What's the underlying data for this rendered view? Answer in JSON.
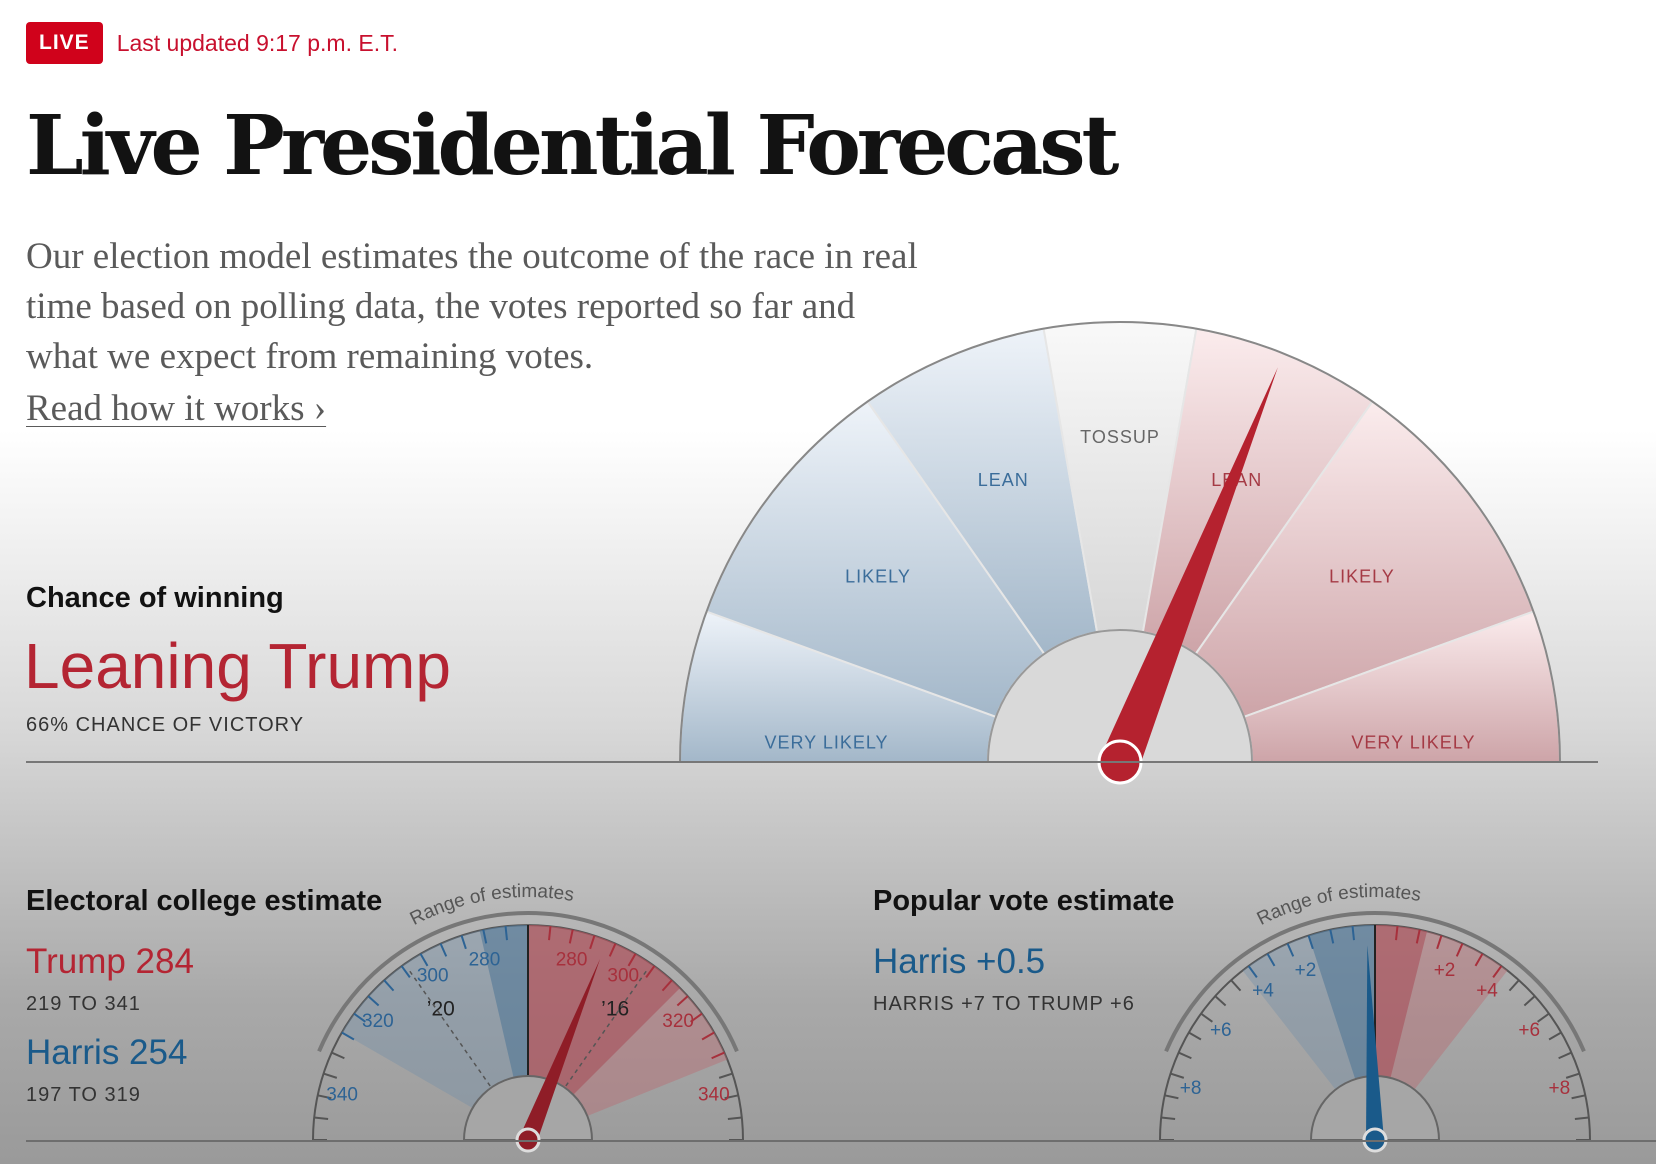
{
  "header": {
    "live_badge": "LIVE",
    "updated_text": "Last updated 9:17 p.m. E.T.",
    "title": "Live Presidential Forecast",
    "intro": "Our election model estimates the outcome of the race in real time based on polling data, the votes reported so far and what we expect from remaining votes.",
    "read_link": "Read how it works ›"
  },
  "chance": {
    "label": "Chance of winning",
    "value": "Leaning Trump",
    "sub": "66% CHANCE OF VICTORY",
    "trump_probability": 0.66,
    "segments": [
      {
        "label": "VERY LIKELY",
        "side": "harris"
      },
      {
        "label": "LIKELY",
        "side": "harris"
      },
      {
        "label": "LEAN",
        "side": "harris"
      },
      {
        "label": "TOSSUP",
        "side": "neutral"
      },
      {
        "label": "LEAN",
        "side": "trump"
      },
      {
        "label": "LIKELY",
        "side": "trump"
      },
      {
        "label": "VERY LIKELY",
        "side": "trump"
      }
    ]
  },
  "electoral": {
    "label": "Electoral college estimate",
    "trump": "Trump 284",
    "trump_range": "219 TO 341",
    "harris": "Harris 254",
    "harris_range": "197 TO 319",
    "trump_votes": 284,
    "gauge_title": "Range of estimates",
    "left_ticks": [
      "280",
      "300",
      "320",
      "340"
    ],
    "right_ticks": [
      "280",
      "300",
      "320",
      "340"
    ],
    "marker_2020": "’20",
    "marker_2016": "’16"
  },
  "popular": {
    "label": "Popular vote estimate",
    "value": "Harris +0.5",
    "range": "HARRIS +7 TO TRUMP +6",
    "margin_harris": 0.5,
    "gauge_title": "Range of estimates",
    "left_ticks": [
      "+2",
      "+4",
      "+6",
      "+8"
    ],
    "right_ticks": [
      "+2",
      "+4",
      "+6",
      "+8"
    ]
  },
  "colors": {
    "accent_red": "#c8102e",
    "trump_red": "#b42533",
    "harris_blue": "#1a5a8a"
  }
}
